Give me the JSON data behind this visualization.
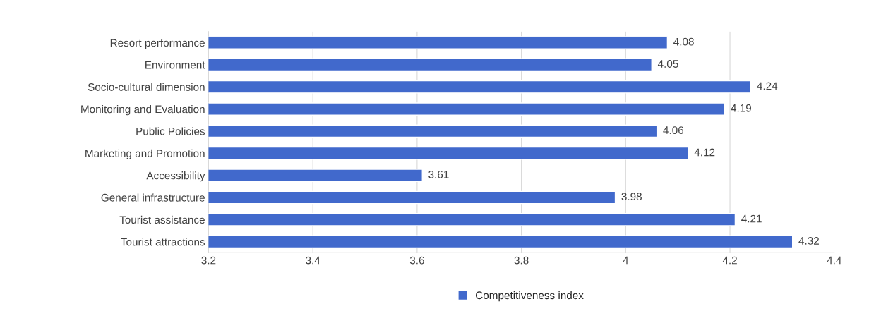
{
  "chart_data": {
    "type": "bar",
    "orientation": "horizontal",
    "categories": [
      "Resort performance",
      "Environment",
      "Socio-cultural dimension",
      "Monitoring and Evaluation",
      "Public Policies",
      "Marketing and Promotion",
      "Accessibility",
      "General infrastructure",
      "Tourist assistance",
      "Tourist attractions"
    ],
    "series": [
      {
        "name": "Competitiveness index",
        "color": "#4169cc",
        "values": [
          4.08,
          4.05,
          4.24,
          4.19,
          4.06,
          4.12,
          3.61,
          3.98,
          4.21,
          4.32
        ]
      }
    ],
    "xlim": [
      3.2,
      4.4
    ],
    "xticks": [
      3.2,
      3.4,
      3.6,
      3.8,
      4,
      4.2,
      4.4
    ],
    "grid": "x",
    "legend": "bottom",
    "data_labels": true
  }
}
